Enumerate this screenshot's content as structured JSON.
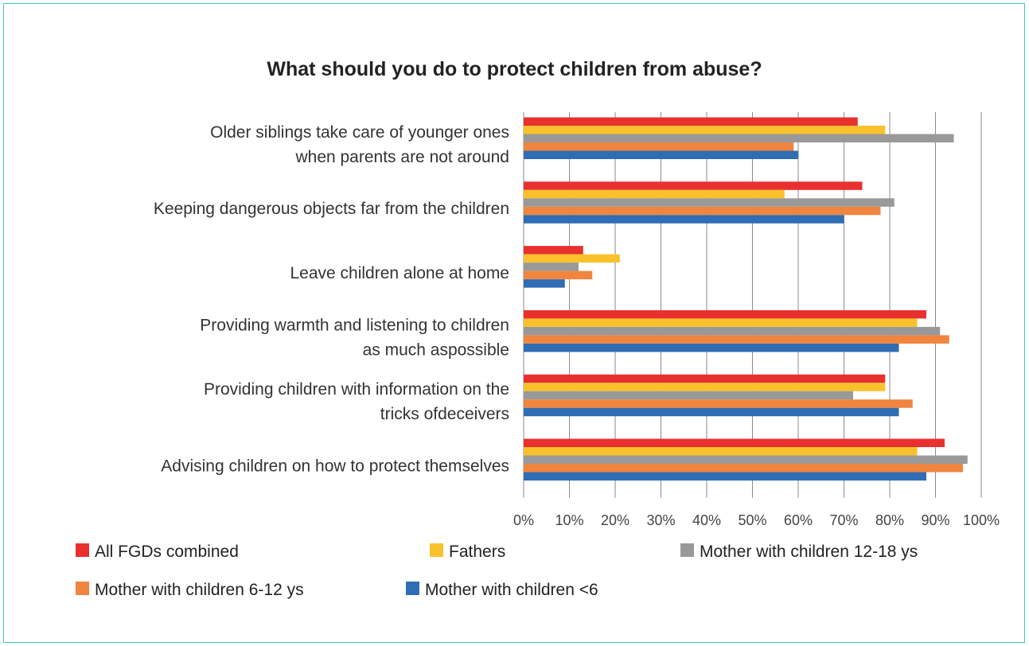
{
  "chart_data": {
    "type": "bar",
    "orientation": "horizontal",
    "title": "What should you do to protect children from abuse?",
    "categories": [
      [
        "Older siblings take care of younger ones",
        "when parents are not around"
      ],
      [
        "Keeping dangerous objects far from the children"
      ],
      [
        "Leave children alone at home"
      ],
      [
        "Providing warmth and listening to children",
        "as much aspossible"
      ],
      [
        "Providing children with information on the",
        "tricks ofdeceivers"
      ],
      [
        "Advising children on how to protect themselves"
      ]
    ],
    "series": [
      {
        "name": "All FGDs combined",
        "color": "#e8312f",
        "values": [
          73,
          74,
          13,
          88,
          79,
          92
        ]
      },
      {
        "name": "Fathers",
        "color": "#f9c12b",
        "values": [
          79,
          57,
          21,
          86,
          79,
          86
        ]
      },
      {
        "name": "Mother with children 12-18 ys",
        "color": "#999999",
        "values": [
          94,
          81,
          12,
          91,
          72,
          97
        ]
      },
      {
        "name": "Mother with children 6-12 ys",
        "color": "#f0853f",
        "values": [
          59,
          78,
          15,
          93,
          85,
          96
        ]
      },
      {
        "name": "Mother with children <6",
        "color": "#2f6db4",
        "values": [
          60,
          70,
          9,
          82,
          82,
          88
        ]
      }
    ],
    "xlim": [
      0,
      100
    ],
    "xticks": [
      "0%",
      "10%",
      "20%",
      "30%",
      "40%",
      "50%",
      "60%",
      "70%",
      "80%",
      "90%",
      "100%"
    ],
    "grid": true,
    "legend_position": "bottom"
  }
}
